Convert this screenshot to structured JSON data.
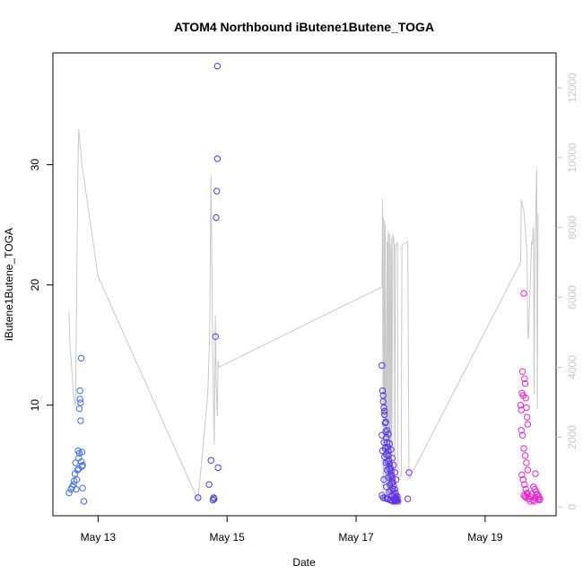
{
  "chart_data": {
    "type": "scatter",
    "title": "ATOM4 Northbound iButene1Butene_TOGA",
    "xlabel": "Date",
    "ylabel": "iButene1Butene_TOGA",
    "x_ticks": [
      "May 13",
      "May 15",
      "May 17",
      "May 19"
    ],
    "x_tick_values": [
      13,
      15,
      17,
      19
    ],
    "xlim": [
      12.3,
      20.1
    ],
    "ylim": [
      0.8,
      39.3
    ],
    "y_ticks": [
      10,
      20,
      30
    ],
    "y2lim": [
      -250,
      13000
    ],
    "y2_ticks": [
      0,
      2000,
      4000,
      6000,
      8000,
      10000,
      12000
    ],
    "grid": false,
    "colors": {
      "early": "#3f6cf0",
      "mid": "#3c3cf5",
      "late": "#8a28e8",
      "end": "#f020d0",
      "line": "#c8c8c8"
    },
    "series": [
      {
        "kind": "points",
        "x": [
          12.55,
          12.58,
          12.6,
          12.62,
          12.63,
          12.64,
          12.65,
          12.66,
          12.67,
          12.68,
          12.69,
          12.7,
          12.7,
          12.71,
          12.71,
          12.72,
          12.72,
          12.73,
          12.73,
          12.74,
          12.74,
          12.75,
          12.75,
          12.76,
          12.76,
          12.78
        ],
        "y": [
          2.7,
          3.0,
          3.2,
          3.4,
          3.7,
          4.3,
          5.2,
          3.0,
          3.8,
          4.6,
          6.2,
          4.7,
          5.6,
          6.0,
          9.7,
          10.5,
          11.2,
          8.7,
          10.2,
          13.9,
          5.3,
          4.9,
          6.1,
          3.1,
          5.0,
          2.0
        ]
      },
      {
        "kind": "points",
        "x": [
          14.55,
          14.72,
          14.75,
          14.78,
          14.79,
          14.8,
          14.82,
          14.83,
          14.84,
          14.85,
          14.85,
          14.86
        ],
        "y": [
          2.3,
          3.4,
          5.4,
          2.1,
          2.3,
          2.2,
          15.7,
          25.6,
          27.8,
          30.5,
          38.2,
          4.8
        ]
      },
      {
        "kind": "points",
        "x": [
          17.4,
          17.41,
          17.42,
          17.43,
          17.44,
          17.45,
          17.46,
          17.47,
          17.48,
          17.49,
          17.5,
          17.5,
          17.51,
          17.52,
          17.53,
          17.54,
          17.55,
          17.56,
          17.57,
          17.58,
          17.6,
          17.61,
          17.62,
          17.63,
          17.64,
          17.65,
          17.42,
          17.44,
          17.46,
          17.48,
          17.5,
          17.52,
          17.54,
          17.56,
          17.58,
          17.6,
          17.62,
          17.4,
          17.43,
          17.45,
          17.47,
          17.49,
          17.51,
          17.53,
          17.55,
          17.57,
          17.59,
          17.61,
          17.63,
          17.41,
          17.44,
          17.46,
          17.48,
          17.5,
          17.52,
          17.54,
          17.56,
          17.58,
          17.6,
          17.62,
          17.64,
          17.43,
          17.47,
          17.51,
          17.55,
          17.59,
          17.4,
          17.45,
          17.49,
          17.53,
          17.57,
          17.61,
          17.42,
          17.48,
          17.54,
          17.6,
          17.8,
          17.82
        ],
        "y": [
          13.3,
          11.2,
          10.3,
          9.8,
          9.2,
          8.5,
          7.8,
          7.3,
          6.9,
          6.5,
          6.2,
          5.8,
          5.4,
          5.1,
          4.8,
          4.5,
          4.2,
          3.9,
          3.6,
          3.3,
          3.0,
          2.7,
          2.4,
          2.2,
          2.1,
          2.0,
          10.8,
          9.5,
          8.6,
          7.9,
          7.6,
          6.8,
          6.3,
          5.6,
          5.0,
          4.4,
          3.8,
          7.5,
          6.9,
          6.4,
          5.9,
          5.3,
          4.7,
          4.1,
          3.5,
          3.0,
          2.6,
          2.3,
          2.1,
          6.2,
          5.7,
          5.2,
          4.6,
          4.0,
          3.4,
          2.9,
          2.5,
          2.2,
          2.0,
          2.2,
          2.4,
          3.8,
          3.2,
          2.8,
          2.4,
          2.1,
          2.5,
          2.3,
          2.2,
          2.1,
          2.0,
          2.1,
          2.3,
          2.2,
          2.1,
          2.2,
          2.2,
          4.4
        ]
      },
      {
        "kind": "points",
        "x": [
          19.55,
          19.56,
          19.57,
          19.58,
          19.59,
          19.6,
          19.61,
          19.62,
          19.63,
          19.64,
          19.65,
          19.66,
          19.56,
          19.58,
          19.6,
          19.62,
          19.64,
          19.66,
          19.57,
          19.59,
          19.61,
          19.63,
          19.65,
          19.6,
          19.62,
          19.64,
          19.68,
          19.7,
          19.72,
          19.74,
          19.76,
          19.78,
          19.8,
          19.82,
          19.84,
          19.75,
          19.77,
          19.79,
          19.81,
          19.83,
          19.85,
          19.7,
          19.78,
          19.62,
          19.66
        ],
        "y": [
          10.0,
          9.6,
          11.0,
          12.8,
          10.8,
          19.3,
          12.2,
          11.8,
          10.6,
          9.8,
          9.0,
          8.4,
          7.9,
          7.5,
          6.4,
          5.8,
          5.2,
          4.6,
          4.2,
          3.8,
          3.4,
          3.0,
          2.7,
          2.5,
          2.4,
          2.3,
          2.2,
          2.4,
          2.6,
          2.1,
          2.0,
          2.3,
          2.5,
          2.2,
          2.1,
          3.2,
          3.0,
          2.8,
          2.6,
          2.4,
          2.2,
          2.0,
          4.3,
          2.4,
          2.6
        ]
      },
      {
        "kind": "line",
        "x": [
          12.55,
          12.56,
          12.62,
          12.65,
          12.69,
          12.7,
          12.75,
          13.0,
          14.55,
          14.7,
          14.73,
          14.75,
          14.78,
          14.8,
          14.82,
          14.83,
          14.85,
          14.86,
          14.87,
          17.4,
          17.41,
          17.42,
          17.42,
          17.43,
          17.44,
          17.45,
          17.45,
          17.47,
          17.48,
          17.49,
          17.49,
          17.5,
          17.51,
          17.52,
          17.52,
          17.53,
          17.54,
          17.55,
          17.55,
          17.57,
          17.58,
          17.59,
          17.6,
          17.61,
          17.62,
          17.63,
          17.64,
          17.65,
          17.7,
          17.71,
          17.8,
          17.82,
          19.55,
          19.56,
          19.57,
          19.6,
          19.65,
          19.66,
          19.67,
          19.72,
          19.73,
          19.75,
          19.76,
          19.77,
          19.8,
          19.81,
          19.82
        ],
        "y": [
          5600,
          4800,
          3200,
          2900,
          10000,
          10800,
          9800,
          6600,
          200,
          3200,
          4900,
          9500,
          4100,
          1800,
          5500,
          3500,
          2600,
          4200,
          4000,
          6300,
          8800,
          400,
          8300,
          600,
          8200,
          700,
          8100,
          800,
          7600,
          300,
          7300,
          7900,
          500,
          7800,
          400,
          7500,
          300,
          7700,
          200,
          7800,
          7700,
          7500,
          100,
          7500,
          7500,
          7500,
          7600,
          800,
          900,
          7500,
          7600,
          800,
          7000,
          8800,
          8700,
          8500,
          7300,
          5000,
          4800,
          7600,
          7500,
          8000,
          3200,
          7000,
          9700,
          2800,
          8400
        ]
      }
    ]
  }
}
